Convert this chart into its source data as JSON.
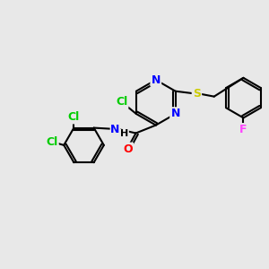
{
  "bg_color": "#e8e8e8",
  "bond_color": "#000000",
  "bond_width": 1.5,
  "atom_colors": {
    "C": "#000000",
    "N": "#0000ff",
    "O": "#ff0000",
    "S": "#cccc00",
    "Cl": "#00cc00",
    "F": "#ff44ff",
    "H": "#000000"
  },
  "font_size": 9,
  "figsize": [
    3.0,
    3.0
  ],
  "dpi": 100
}
